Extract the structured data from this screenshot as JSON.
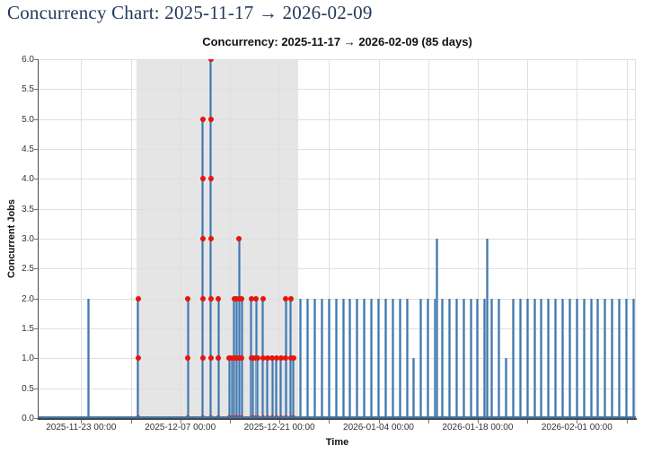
{
  "page": {
    "title": "Concurrency Chart: 2025-11-17 → 2026-02-09"
  },
  "chart": {
    "title": "Concurrency: 2025-11-17 → 2026-02-09 (85 days)",
    "xlabel": "Time",
    "ylabel": "Concurrent Jobs"
  },
  "chart_data": {
    "type": "line",
    "subtype": "event-stem-concurrency",
    "title": "Concurrency: 2025-11-17 → 2026-02-09 (85 days)",
    "xlabel": "Time",
    "ylabel": "Concurrent Jobs",
    "x_range_days": [
      0,
      84.33
    ],
    "x_epoch": "2025-11-17 00:00",
    "x_ticks": [
      {
        "day": 6,
        "label": "2025-11-23 00:00"
      },
      {
        "day": 20,
        "label": "2025-12-07 00:00"
      },
      {
        "day": 34,
        "label": "2025-12-21 00:00"
      },
      {
        "day": 48,
        "label": "2026-01-04 00:00"
      },
      {
        "day": 62,
        "label": "2026-01-18 00:00"
      },
      {
        "day": 76,
        "label": "2026-02-01 00:00"
      }
    ],
    "x_minor_tick_days": [
      6,
      13,
      20,
      27,
      34,
      41,
      48,
      55,
      62,
      69,
      76,
      83
    ],
    "ylim": [
      0,
      6
    ],
    "y_tick_labels": [
      "0.0",
      "0.5",
      "1.0",
      "1.5",
      "2.0",
      "2.5",
      "3.0",
      "3.5",
      "4.0",
      "4.5",
      "5.0",
      "5.5",
      "6.0"
    ],
    "grid": true,
    "highlight_region": {
      "start_day": 13.85,
      "end_day": 36.65,
      "color": "#e5e5e5"
    },
    "colors": {
      "stem": "#4376aa",
      "marker": "#e8140c",
      "grid": "#dfdfdf",
      "baseline": "#3f74a9",
      "spine": "#4a4a4a"
    },
    "events_format": "[day_offset_from_2025-11-17, concurrent_jobs_peak, has_red_markers]",
    "events": [
      [
        7,
        2,
        0
      ],
      [
        14.05,
        2,
        1
      ],
      [
        21.1,
        2,
        1
      ],
      [
        23.2,
        5,
        1
      ],
      [
        24.3,
        6,
        1
      ],
      [
        25.4,
        2,
        1
      ],
      [
        26.9,
        1,
        1
      ],
      [
        27.3,
        1,
        1
      ],
      [
        27.6,
        2,
        1
      ],
      [
        27.9,
        2,
        1
      ],
      [
        28.3,
        3,
        1
      ],
      [
        28.7,
        2,
        1
      ],
      [
        30.0,
        2,
        1
      ],
      [
        30.3,
        1,
        1
      ],
      [
        30.7,
        2,
        1
      ],
      [
        30.9,
        1,
        1
      ],
      [
        31.7,
        2,
        1
      ],
      [
        32.3,
        1,
        1
      ],
      [
        33.0,
        1,
        1
      ],
      [
        33.6,
        1,
        1
      ],
      [
        34.2,
        1,
        1
      ],
      [
        34.9,
        2,
        1
      ],
      [
        35.6,
        2,
        1
      ],
      [
        36.0,
        1,
        1
      ],
      [
        37,
        2,
        0
      ],
      [
        38,
        2,
        0
      ],
      [
        39,
        2,
        0
      ],
      [
        40,
        2,
        0
      ],
      [
        41,
        2,
        0
      ],
      [
        42,
        2,
        0
      ],
      [
        43,
        2,
        0
      ],
      [
        44,
        2,
        0
      ],
      [
        45,
        2,
        0
      ],
      [
        46,
        2,
        0
      ],
      [
        47,
        2,
        0
      ],
      [
        48,
        2,
        0
      ],
      [
        49,
        2,
        0
      ],
      [
        50,
        2,
        0
      ],
      [
        51,
        2,
        0
      ],
      [
        52,
        2,
        0
      ],
      [
        53,
        1,
        0
      ],
      [
        54,
        2,
        0
      ],
      [
        55,
        2,
        0
      ],
      [
        56,
        2,
        0
      ],
      [
        56.3,
        3,
        0
      ],
      [
        57,
        2,
        0
      ],
      [
        58,
        2,
        0
      ],
      [
        59,
        2,
        0
      ],
      [
        60,
        2,
        0
      ],
      [
        61,
        2,
        0
      ],
      [
        62,
        2,
        0
      ],
      [
        63,
        2,
        0
      ],
      [
        63.3,
        3,
        0
      ],
      [
        64,
        2,
        0
      ],
      [
        65,
        2,
        0
      ],
      [
        66,
        1,
        0
      ],
      [
        67,
        2,
        0
      ],
      [
        68,
        2,
        0
      ],
      [
        69,
        2,
        0
      ],
      [
        70,
        2,
        0
      ],
      [
        71,
        2,
        0
      ],
      [
        72,
        2,
        0
      ],
      [
        73,
        2,
        0
      ],
      [
        74,
        2,
        0
      ],
      [
        75,
        2,
        0
      ],
      [
        76,
        2,
        0
      ],
      [
        77,
        2,
        0
      ],
      [
        78,
        2,
        0
      ],
      [
        79,
        2,
        0
      ],
      [
        80,
        2,
        0
      ],
      [
        81,
        2,
        0
      ],
      [
        82,
        2,
        0
      ],
      [
        83,
        2,
        0
      ],
      [
        84,
        2,
        0
      ]
    ]
  }
}
